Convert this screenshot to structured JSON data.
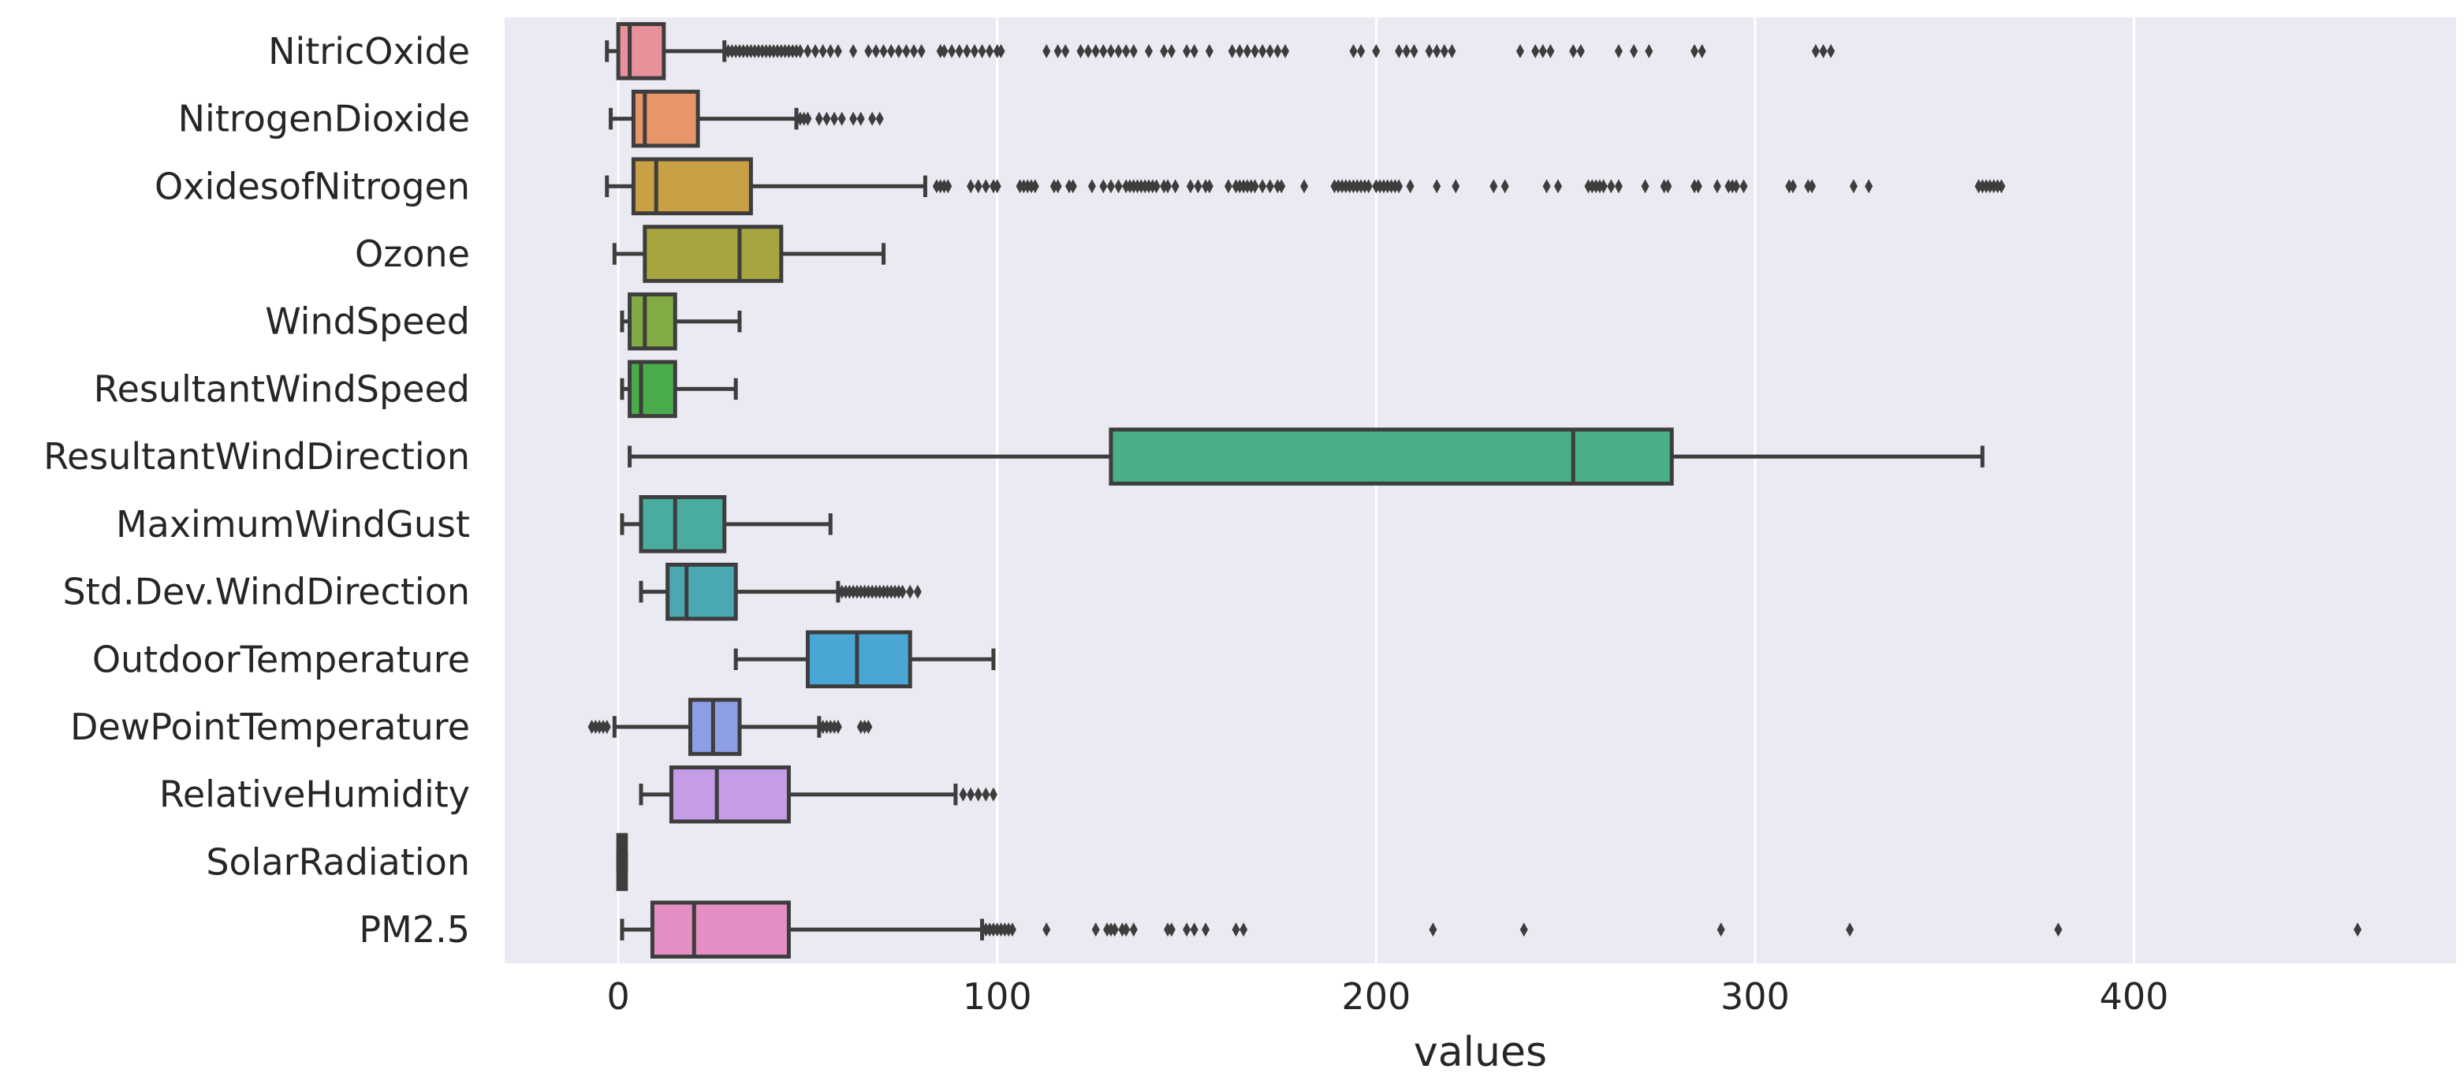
{
  "chart_data": {
    "type": "boxplot",
    "orientation": "horizontal",
    "xlabel": "values",
    "ylabel": "",
    "title": "",
    "xlim": [
      -30,
      485
    ],
    "xticks": [
      0,
      100,
      200,
      300,
      400
    ],
    "xtick_labels": [
      "0",
      "100",
      "200",
      "300",
      "400"
    ],
    "grid": true,
    "background": "#eaeaf2",
    "series": [
      {
        "name": "NitricOxide",
        "color": "#e8919b",
        "whisker_low": -3,
        "q1": 0,
        "median": 3,
        "q3": 12,
        "whisker_high": 28,
        "outliers": [
          29,
          30,
          31,
          32,
          33,
          34,
          35,
          36,
          37,
          38,
          39,
          40,
          41,
          42,
          43,
          44,
          45,
          46,
          47,
          48,
          50,
          52,
          54,
          56,
          58,
          62,
          66,
          68,
          70,
          72,
          74,
          76,
          78,
          80,
          85,
          86,
          88,
          90,
          92,
          94,
          96,
          98,
          100,
          101,
          113,
          116,
          118,
          122,
          124,
          126,
          128,
          130,
          132,
          134,
          136,
          140,
          144,
          146,
          150,
          152,
          156,
          162,
          164,
          166,
          168,
          170,
          172,
          174,
          176,
          194,
          196,
          200,
          206,
          208,
          210,
          214,
          216,
          218,
          220,
          238,
          242,
          244,
          246,
          252,
          254,
          264,
          268,
          272,
          284,
          286,
          316,
          318,
          320
        ]
      },
      {
        "name": "NitrogenDioxide",
        "color": "#e8956a",
        "whisker_low": -2,
        "q1": 4,
        "median": 7,
        "q3": 21,
        "whisker_high": 47,
        "outliers": [
          48,
          49,
          50,
          53,
          55,
          57,
          59,
          62,
          64,
          67,
          69
        ]
      },
      {
        "name": "OxidesofNitrogen",
        "color": "#c9a043",
        "whisker_low": -3,
        "q1": 4,
        "median": 10,
        "q3": 35,
        "whisker_high": 81,
        "outliers": [
          84,
          85,
          86,
          87,
          93,
          95,
          97,
          99,
          100,
          106,
          107,
          108,
          109,
          110,
          115,
          116,
          119,
          120,
          125,
          128,
          130,
          132,
          134,
          135,
          136,
          137,
          138,
          139,
          140,
          141,
          142,
          144,
          145,
          147,
          151,
          153,
          155,
          156,
          161,
          163,
          164,
          165,
          166,
          167,
          168,
          170,
          172,
          174,
          175,
          181,
          189,
          190,
          191,
          192,
          193,
          194,
          195,
          196,
          197,
          198,
          200,
          201,
          202,
          203,
          204,
          205,
          206,
          209,
          216,
          221,
          231,
          234,
          245,
          248,
          256,
          257,
          258,
          259,
          260,
          262,
          264,
          271,
          276,
          277,
          284,
          285,
          290,
          293,
          294,
          295,
          297,
          309,
          310,
          314,
          315,
          326,
          330,
          359,
          360,
          361,
          362,
          363,
          364,
          365
        ]
      },
      {
        "name": "Ozone",
        "color": "#a7a53f",
        "whisker_low": -1,
        "q1": 7,
        "median": 32,
        "q3": 43,
        "whisker_high": 70,
        "outliers": []
      },
      {
        "name": "WindSpeed",
        "color": "#82ab45",
        "whisker_low": 1,
        "q1": 3,
        "median": 7,
        "q3": 15,
        "whisker_high": 32,
        "outliers": []
      },
      {
        "name": "ResultantWindSpeed",
        "color": "#49ac4b",
        "whisker_low": 1,
        "q1": 3,
        "median": 6,
        "q3": 15,
        "whisker_high": 31,
        "outliers": []
      },
      {
        "name": "ResultantWindDirection",
        "color": "#4aae86",
        "whisker_low": 3,
        "q1": 130,
        "median": 252,
        "q3": 278,
        "whisker_high": 360,
        "outliers": []
      },
      {
        "name": "MaximumWindGust",
        "color": "#4aab9f",
        "whisker_low": 1,
        "q1": 6,
        "median": 15,
        "q3": 28,
        "whisker_high": 56,
        "outliers": []
      },
      {
        "name": "Std.Dev.WindDirection",
        "color": "#49a8b2",
        "whisker_low": 6,
        "q1": 13,
        "median": 18,
        "q3": 31,
        "whisker_high": 58,
        "outliers": [
          59,
          60,
          61,
          62,
          63,
          64,
          65,
          66,
          67,
          68,
          69,
          70,
          71,
          72,
          73,
          74,
          75,
          77,
          79
        ]
      },
      {
        "name": "OutdoorTemperature",
        "color": "#4aa6d4",
        "whisker_low": 31,
        "q1": 50,
        "median": 63,
        "q3": 77,
        "whisker_high": 99,
        "outliers": []
      },
      {
        "name": "DewPointTemperature",
        "color": "#8e9fe5",
        "whisker_low": -1,
        "q1": 19,
        "median": 25,
        "q3": 32,
        "whisker_high": 53,
        "outliers": [
          -7,
          -6,
          -5,
          -4,
          -3,
          54,
          55,
          56,
          57,
          58,
          64,
          65,
          66
        ]
      },
      {
        "name": "RelativeHumidity",
        "color": "#c59de6",
        "whisker_low": 6,
        "q1": 14,
        "median": 26,
        "q3": 45,
        "whisker_high": 89,
        "outliers": [
          91,
          93,
          95,
          97,
          99
        ]
      },
      {
        "name": "SolarRadiation",
        "color": "#e08fd8",
        "whisker_low": 0,
        "q1": 0,
        "median": 1,
        "q3": 2,
        "whisker_high": 2,
        "outliers": []
      },
      {
        "name": "PM2.5",
        "color": "#e58ec3",
        "whisker_low": 1,
        "q1": 9,
        "median": 20,
        "q3": 45,
        "whisker_high": 96,
        "outliers": [
          97,
          98,
          99,
          100,
          101,
          102,
          103,
          104,
          113,
          126,
          129,
          130,
          131,
          133,
          134,
          136,
          145,
          146,
          150,
          152,
          155,
          163,
          165,
          215,
          239,
          291,
          325,
          380,
          459
        ]
      }
    ]
  }
}
